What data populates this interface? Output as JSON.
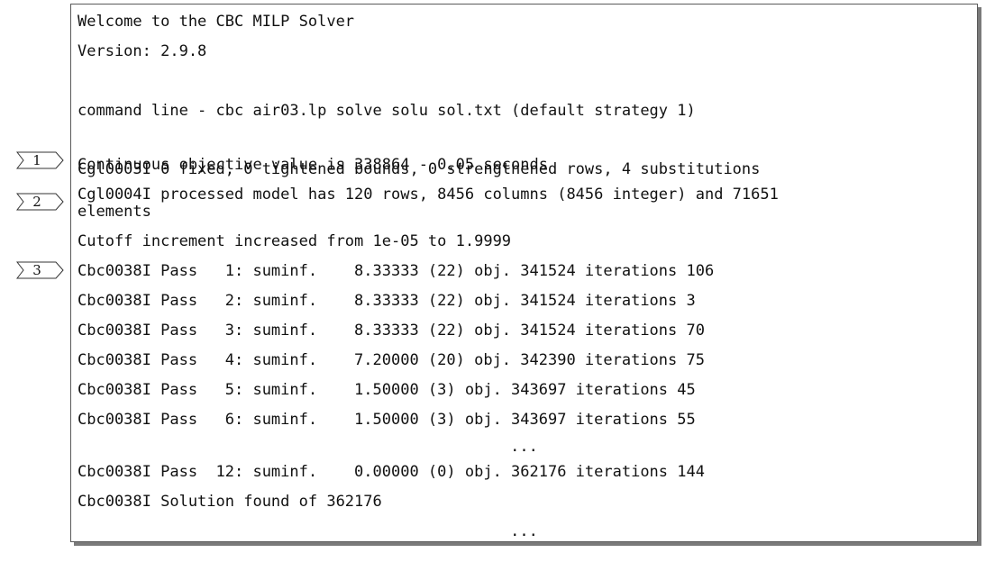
{
  "log_lines": [
    "Welcome to the CBC MILP Solver",
    "Version: 2.9.8",
    "",
    "command line - cbc air03.lp solve solu sol.txt (default strategy 1)",
    "Continuous objective value is 338864 - 0.05 seconds",
    "Cgl0003I 0 fixed, 0 tightened bounds, 0 strengthened rows, 4 substitutions",
    "Cgl0004I processed model has 120 rows, 8456 columns (8456 integer) and 71651",
    "elements",
    "Cutoff increment increased from 1e-05 to 1.9999",
    "Cbc0038I Pass   1: suminf.    8.33333 (22) obj. 341524 iterations 106",
    "Cbc0038I Pass   2: suminf.    8.33333 (22) obj. 341524 iterations 3",
    "Cbc0038I Pass   3: suminf.    8.33333 (22) obj. 341524 iterations 70",
    "Cbc0038I Pass   4: suminf.    7.20000 (20) obj. 342390 iterations 75",
    "Cbc0038I Pass   5: suminf.    1.50000 (3) obj. 343697 iterations 45",
    "Cbc0038I Pass   6: suminf.    1.50000 (3) obj. 343697 iterations 55",
    "...",
    "Cbc0038I Pass  12: suminf.    0.00000 (0) obj. 362176 iterations 144",
    "Cbc0038I Solution found of 362176",
    "..."
  ],
  "markers": [
    {
      "label": "1"
    },
    {
      "label": "2"
    },
    {
      "label": "3"
    }
  ]
}
